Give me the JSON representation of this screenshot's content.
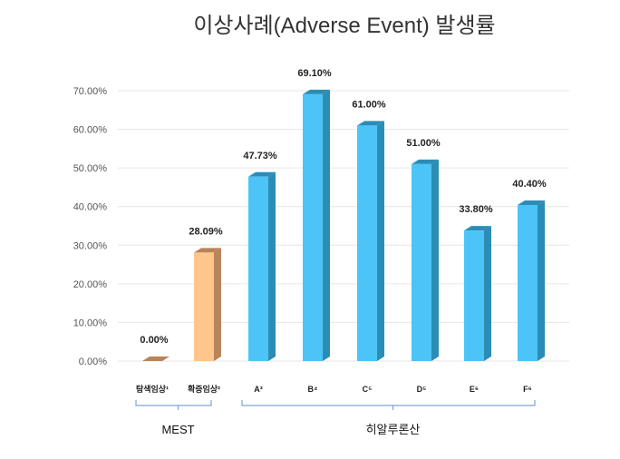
{
  "chart_data": {
    "type": "bar",
    "title": "이상사례(Adverse Event) 발생률",
    "categories": [
      "탐색임상¹",
      "확증임상²",
      "A³",
      "B⁴",
      "C⁵",
      "D⁵",
      "E⁶",
      "F⁶"
    ],
    "values": [
      0.0,
      28.09,
      47.73,
      69.1,
      61.0,
      51.0,
      33.8,
      40.4
    ],
    "data_labels": [
      "0.00%",
      "28.09%",
      "47.73%",
      "69.10%",
      "61.00%",
      "51.00%",
      "33.80%",
      "40.40%"
    ],
    "groups": [
      {
        "name": "MEST",
        "members": [
          0,
          1
        ],
        "color": "#FFC68C",
        "side": "#B8845A"
      },
      {
        "name": "히알루론산",
        "members": [
          2,
          3,
          4,
          5,
          6,
          7
        ],
        "color": "#4CC4F7",
        "side": "#2B8DB5"
      }
    ],
    "yticks": [
      "0.00%",
      "10.00%",
      "20.00%",
      "30.00%",
      "40.00%",
      "50.00%",
      "60.00%",
      "70.00%"
    ],
    "ylim": [
      0,
      70
    ],
    "grid": true,
    "xlabel": "",
    "ylabel": ""
  }
}
